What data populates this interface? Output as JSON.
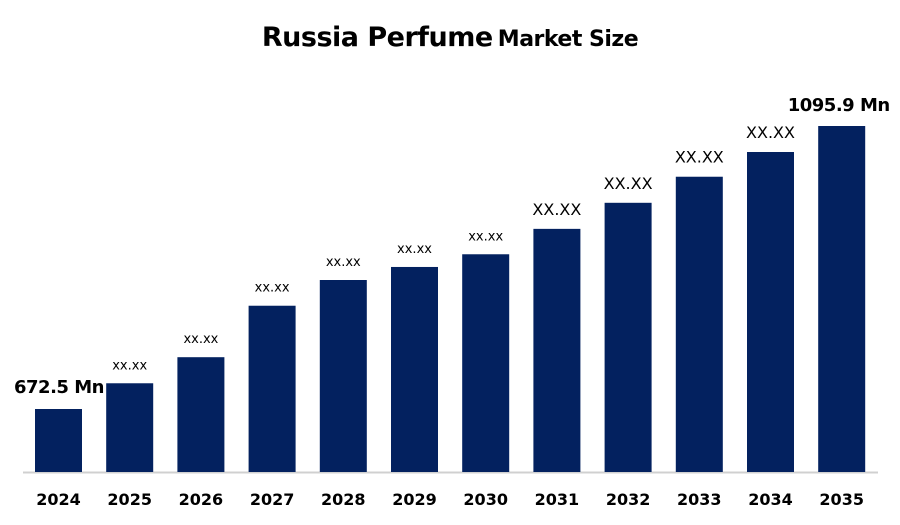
{
  "chart_data": {
    "type": "bar",
    "title_main": "Russia Perfume",
    "title_suffix": "Market Size",
    "xlabel": "",
    "ylabel": "",
    "grid": false,
    "bar_color": "#03215F",
    "categories": [
      "2024",
      "2025",
      "2026",
      "2027",
      "2028",
      "2029",
      "2030",
      "2031",
      "2032",
      "2033",
      "2034",
      "2035"
    ],
    "values": [
      672.5,
      711,
      750,
      827,
      865.5,
      885,
      904,
      942,
      981,
      1020,
      1057,
      1095.9
    ],
    "data_labels": [
      "672.5 Mn",
      "xx.xx",
      "xx.xx",
      "xx.xx",
      "xx.xx",
      "xx.xx",
      "xx.xx",
      "XX.XX",
      "XX.XX",
      "XX.XX",
      "XX.XX",
      "1095.9 Mn"
    ]
  }
}
